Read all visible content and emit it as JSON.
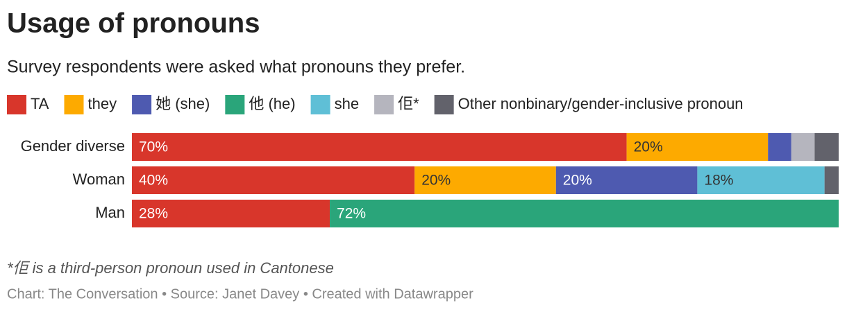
{
  "chart_data": {
    "type": "stacked-bar-horizontal",
    "title": "Usage of pronouns",
    "subtitle": "Survey respondents were asked what pronouns they prefer.",
    "categories": [
      "Gender diverse",
      "Woman",
      "Man"
    ],
    "xlim": [
      0,
      100
    ],
    "series": [
      {
        "name": "TA",
        "color": "#d8362b",
        "values": [
          70,
          40,
          28
        ],
        "value_labels": [
          "70%",
          "40%",
          "28%"
        ]
      },
      {
        "name": "they",
        "color": "#fdaa00",
        "values": [
          20,
          20,
          0
        ],
        "value_labels": [
          "20%",
          "20%",
          null
        ]
      },
      {
        "name": "她 (she)",
        "color": "#4e5ab0",
        "values": [
          3.3,
          20,
          0
        ],
        "value_labels": [
          null,
          "20%",
          null
        ]
      },
      {
        "name": "他 (he)",
        "color": "#2aa57a",
        "values": [
          0,
          0,
          72
        ],
        "value_labels": [
          null,
          null,
          "72%"
        ]
      },
      {
        "name": "she",
        "color": "#5fbfd6",
        "values": [
          0,
          18,
          0
        ],
        "value_labels": [
          null,
          "18%",
          null
        ]
      },
      {
        "name": "佢*",
        "color": "#b5b5be",
        "values": [
          3.3,
          0,
          0
        ],
        "value_labels": [
          null,
          null,
          null
        ]
      },
      {
        "name": "Other nonbinary/gender-inclusive pronoun",
        "color": "#62626b",
        "values": [
          3.4,
          2,
          0
        ],
        "value_labels": [
          null,
          null,
          null
        ]
      }
    ],
    "note": "*佢 is a third-person pronoun used in Cantonese",
    "source": "Chart: The Conversation • Source: Janet Davey • Created with Datawrapper"
  }
}
